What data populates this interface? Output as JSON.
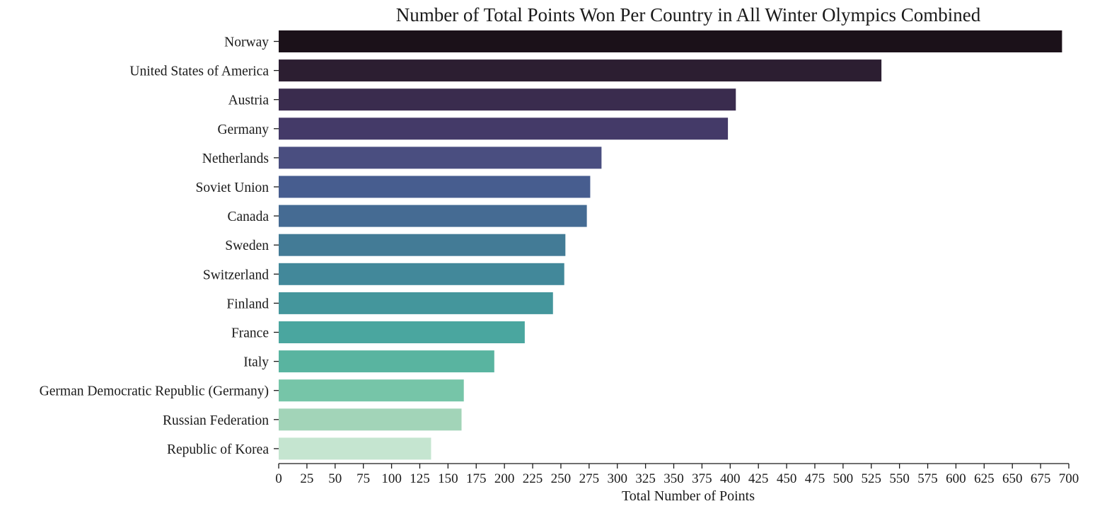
{
  "chart_data": {
    "type": "bar",
    "orientation": "horizontal",
    "title": "Number of Total Points Won Per Country in All Winter Olympics Combined",
    "xlabel": "Total Number of Points",
    "ylabel": "",
    "xlim": [
      0,
      700
    ],
    "xticks": [
      0,
      25,
      50,
      75,
      100,
      125,
      150,
      175,
      200,
      225,
      250,
      275,
      300,
      325,
      350,
      375,
      400,
      425,
      450,
      475,
      500,
      525,
      550,
      575,
      600,
      625,
      650,
      675,
      700
    ],
    "grid": false,
    "categories": [
      "Norway",
      "United States of America",
      "Austria",
      "Germany",
      "Netherlands",
      "Soviet Union",
      "Canada",
      "Sweden",
      "Switzerland",
      "Finland",
      "France",
      "Italy",
      "German Democratic Republic (Germany)",
      "Russian Federation",
      "Republic of Korea"
    ],
    "values": [
      694,
      534,
      405,
      398,
      286,
      276,
      273,
      254,
      253,
      243,
      218,
      191,
      164,
      162,
      135
    ],
    "colors": [
      "#1b1119",
      "#2c1e31",
      "#3a2c4e",
      "#443a68",
      "#4a4e80",
      "#475d8f",
      "#456b93",
      "#437b96",
      "#42889a",
      "#44969c",
      "#4aa69f",
      "#59b4a0",
      "#76c5a8",
      "#a2d4b8",
      "#c5e5d0"
    ]
  }
}
